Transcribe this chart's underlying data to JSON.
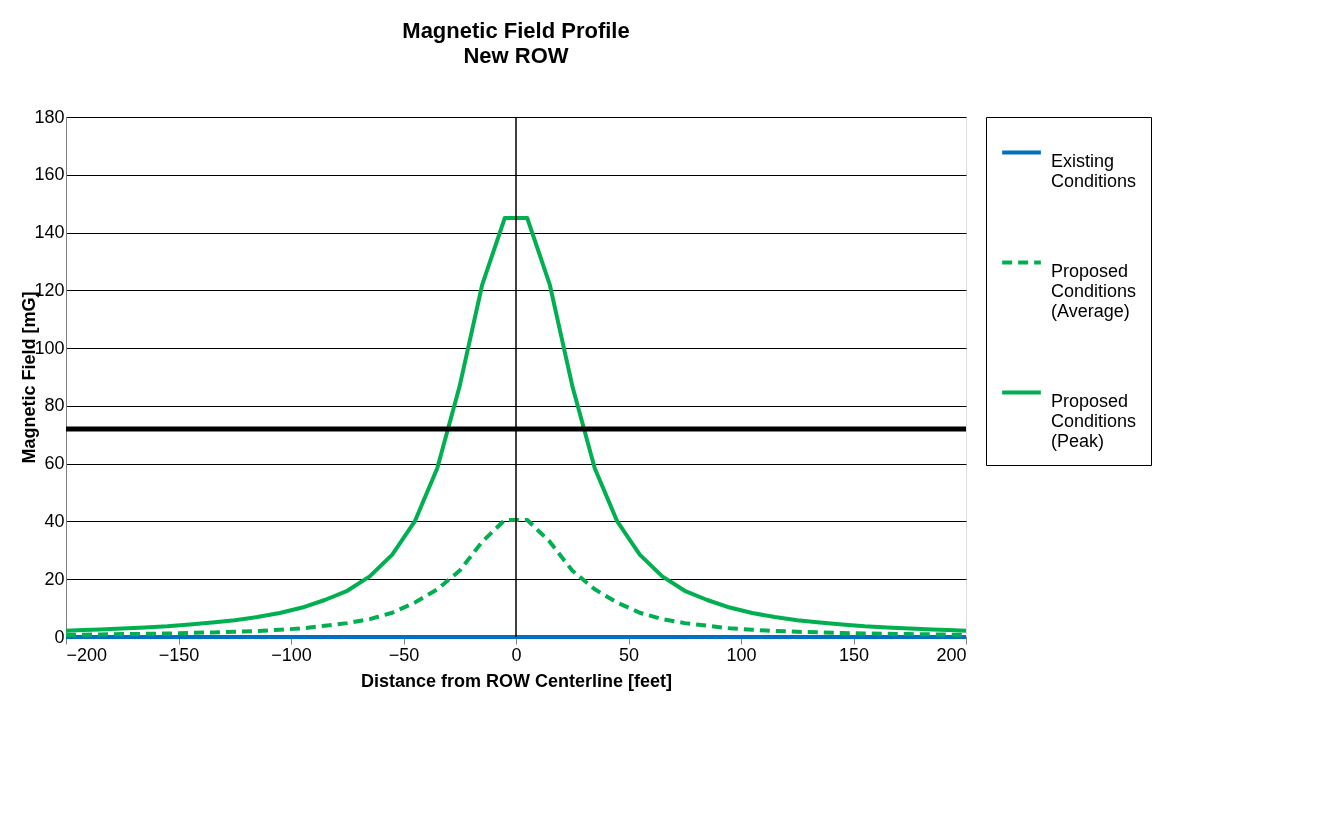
{
  "chart_data": {
    "type": "line",
    "title": "Magnetic Field Profile",
    "subtitle": "New ROW",
    "xlabel": "Distance from ROW Centerline [feet]",
    "ylabel": "Magnetic Field [mG]",
    "x": [
      -200,
      -195,
      -185,
      -175,
      -165,
      -155,
      -145,
      -135,
      -125,
      -115,
      -105,
      -95,
      -85,
      -75,
      -65,
      -55,
      -45,
      -35,
      -25,
      -15,
      -5,
      5,
      15,
      25,
      35,
      45,
      55,
      65,
      75,
      85,
      95,
      105,
      115,
      125,
      135,
      145,
      155,
      165,
      175,
      185,
      195,
      200
    ],
    "series": [
      {
        "name": "Existing Conditions",
        "color": "#0070c0",
        "line_style": "solid",
        "values": [
          0,
          0,
          0,
          0,
          0,
          0,
          0,
          0,
          0,
          0,
          0,
          0,
          0,
          0,
          0,
          0,
          0,
          0,
          0,
          0,
          0,
          0,
          0,
          0,
          0,
          0,
          0,
          0,
          0,
          0,
          0,
          0,
          0,
          0,
          0,
          0,
          0,
          0,
          0,
          0,
          0,
          0
        ]
      },
      {
        "name": "Proposed Conditions (Average)",
        "color": "#00b050",
        "line_style": "dashed",
        "values": [
          0.8,
          0.8,
          0.9,
          1.0,
          1.1,
          1.2,
          1.4,
          1.6,
          1.8,
          2.1,
          2.5,
          3.0,
          3.9,
          4.8,
          6.2,
          8.4,
          11.9,
          16.5,
          23,
          33,
          40.5,
          40.5,
          33,
          23,
          16.5,
          11.9,
          8.4,
          6.2,
          4.8,
          3.9,
          3.0,
          2.5,
          2.1,
          1.8,
          1.6,
          1.4,
          1.2,
          1.1,
          1.0,
          0.9,
          0.8,
          0.8
        ]
      },
      {
        "name": "Proposed Conditions (Peak)",
        "color": "#00b050",
        "line_style": "solid",
        "values": [
          2.2,
          2.3,
          2.6,
          2.9,
          3.3,
          3.7,
          4.3,
          5.0,
          5.8,
          6.9,
          8.3,
          10.2,
          12.8,
          16,
          21,
          28.5,
          40,
          58.4,
          87,
          122,
          145,
          145,
          122,
          87,
          58.4,
          40,
          28.5,
          21,
          16,
          12.8,
          10.2,
          8.3,
          6.9,
          5.8,
          5.0,
          4.3,
          3.7,
          3.3,
          2.9,
          2.6,
          2.3,
          2.2
        ]
      }
    ],
    "xlim": [
      -200,
      200
    ],
    "xticks": [
      -200,
      -150,
      -100,
      -50,
      0,
      50,
      100,
      150,
      200
    ],
    "ylim": [
      0,
      180
    ],
    "yticks": [
      0,
      20,
      40,
      60,
      80,
      100,
      120,
      140,
      160,
      180
    ],
    "ref_lines": [
      {
        "axis": "x",
        "value": 0,
        "color": "#000000"
      },
      {
        "axis": "y",
        "value": 72,
        "color": "#000000"
      }
    ],
    "grid": "y",
    "legend": "right",
    "marker": "none"
  }
}
